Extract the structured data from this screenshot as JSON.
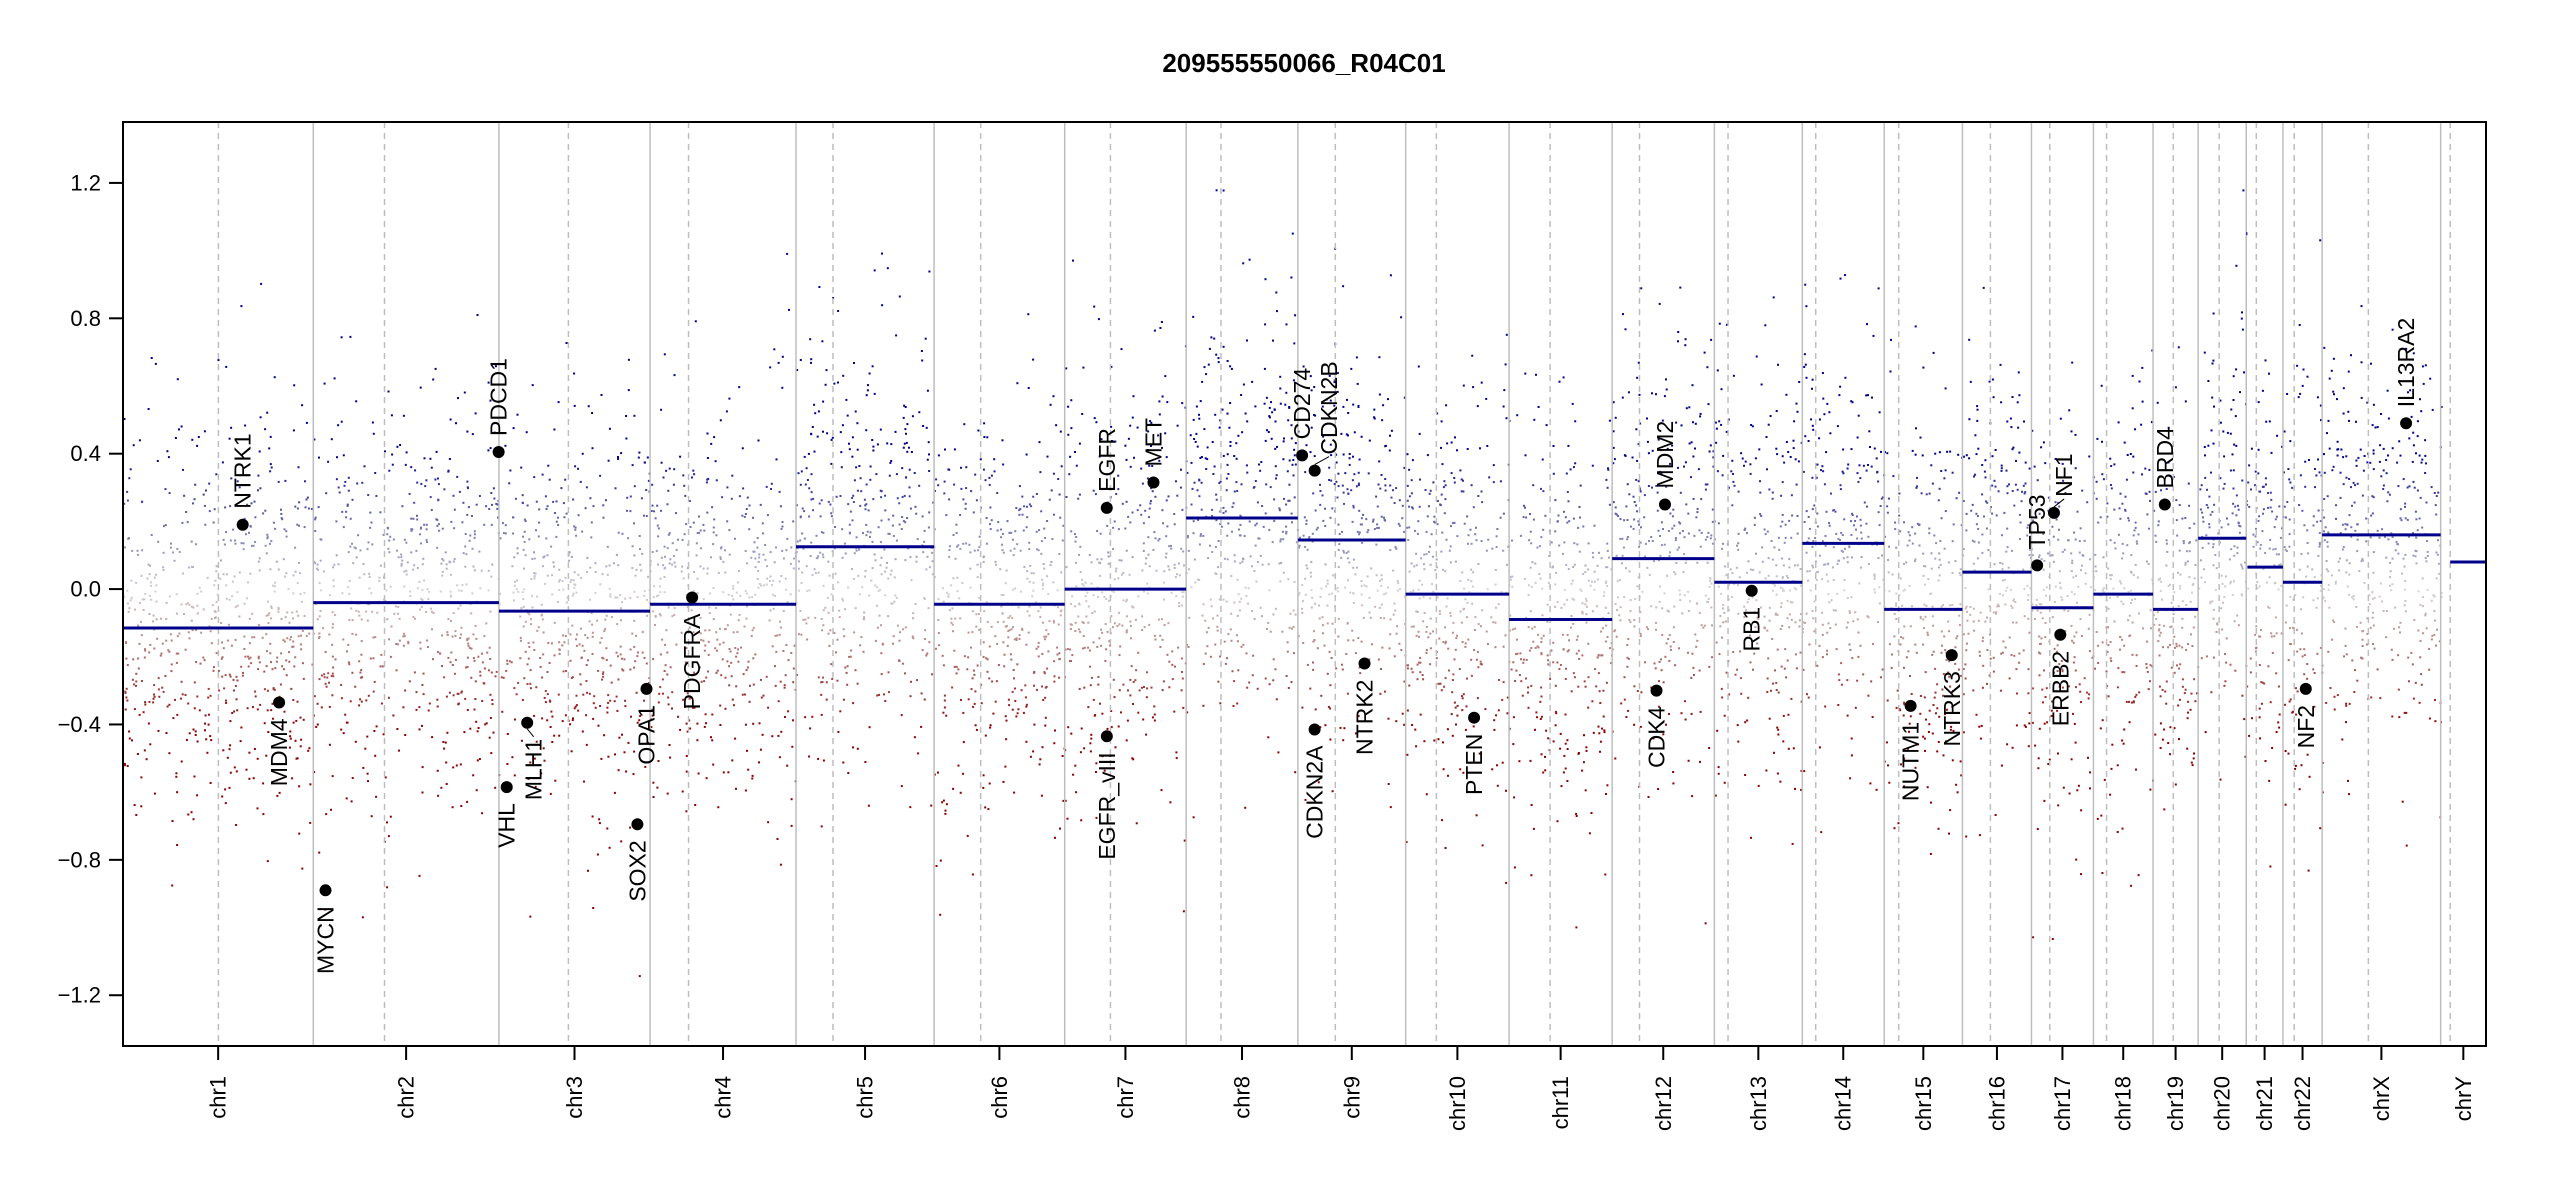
{
  "chart_data": {
    "type": "scatter",
    "title": "209555550066_R04C01",
    "xlabel": "",
    "ylabel": "",
    "ylim": [
      -1.35,
      1.38
    ],
    "y_ticks": [
      -1.2,
      -0.8,
      -0.4,
      0.0,
      0.4,
      0.8,
      1.2
    ],
    "y_tick_labels": [
      "−1.2",
      "−0.8",
      "−0.4",
      "0.0",
      "0.4",
      "0.8",
      "1.2"
    ],
    "x_unit": "Mb",
    "grid": false,
    "colors": {
      "gain": "#00008b",
      "neutral": "#d3d3d3",
      "loss": "#8b0000",
      "segment": "#00008b",
      "chrom_line": "#bebebe",
      "gene_point": "#000000"
    },
    "chromosomes": [
      {
        "name": "chr1",
        "length": 249.3,
        "centromere": 125.0,
        "segments": [
          {
            "start": 0,
            "end": 249.3,
            "mean": -0.115
          }
        ]
      },
      {
        "name": "chr2",
        "length": 243.2,
        "centromere": 93.3,
        "segments": [
          {
            "start": 0,
            "end": 243.2,
            "mean": -0.04
          }
        ]
      },
      {
        "name": "chr3",
        "length": 198.0,
        "centromere": 91.0,
        "segments": [
          {
            "start": 0,
            "end": 198.0,
            "mean": -0.065
          }
        ]
      },
      {
        "name": "chr4",
        "length": 191.2,
        "centromere": 50.4,
        "segments": [
          {
            "start": 0,
            "end": 191.2,
            "mean": -0.045
          }
        ]
      },
      {
        "name": "chr5",
        "length": 180.9,
        "centromere": 48.4,
        "segments": [
          {
            "start": 0,
            "end": 180.9,
            "mean": 0.125
          }
        ]
      },
      {
        "name": "chr6",
        "length": 171.1,
        "centromere": 61.0,
        "segments": [
          {
            "start": 0,
            "end": 171.1,
            "mean": -0.045
          }
        ]
      },
      {
        "name": "chr7",
        "length": 159.1,
        "centromere": 59.9,
        "segments": [
          {
            "start": 0,
            "end": 159.1,
            "mean": 0.0
          }
        ]
      },
      {
        "name": "chr8",
        "length": 146.4,
        "centromere": 45.6,
        "segments": [
          {
            "start": 0,
            "end": 146.4,
            "mean": 0.21
          }
        ]
      },
      {
        "name": "chr9",
        "length": 141.2,
        "centromere": 49.0,
        "segments": [
          {
            "start": 0,
            "end": 141.2,
            "mean": 0.145
          }
        ]
      },
      {
        "name": "chr10",
        "length": 135.5,
        "centromere": 40.2,
        "segments": [
          {
            "start": 0,
            "end": 135.5,
            "mean": -0.015
          }
        ]
      },
      {
        "name": "chr11",
        "length": 135.0,
        "centromere": 53.7,
        "segments": [
          {
            "start": 0,
            "end": 135.0,
            "mean": -0.09
          }
        ]
      },
      {
        "name": "chr12",
        "length": 133.9,
        "centromere": 35.8,
        "segments": [
          {
            "start": 0,
            "end": 133.9,
            "mean": 0.09
          }
        ]
      },
      {
        "name": "chr13",
        "length": 115.2,
        "centromere": 17.9,
        "segments": [
          {
            "start": 0,
            "end": 115.2,
            "mean": 0.02
          }
        ]
      },
      {
        "name": "chr14",
        "length": 107.3,
        "centromere": 17.6,
        "segments": [
          {
            "start": 0,
            "end": 107.3,
            "mean": 0.135
          }
        ]
      },
      {
        "name": "chr15",
        "length": 102.5,
        "centromere": 19.0,
        "segments": [
          {
            "start": 0,
            "end": 102.5,
            "mean": -0.06
          }
        ]
      },
      {
        "name": "chr16",
        "length": 90.4,
        "centromere": 36.6,
        "segments": [
          {
            "start": 0,
            "end": 90.4,
            "mean": 0.05
          }
        ]
      },
      {
        "name": "chr17",
        "length": 81.2,
        "centromere": 24.0,
        "segments": [
          {
            "start": 0,
            "end": 81.2,
            "mean": -0.055
          }
        ]
      },
      {
        "name": "chr18",
        "length": 78.1,
        "centromere": 17.2,
        "segments": [
          {
            "start": 0,
            "end": 78.1,
            "mean": -0.015
          }
        ]
      },
      {
        "name": "chr19",
        "length": 59.1,
        "centromere": 26.5,
        "segments": [
          {
            "start": 0,
            "end": 59.1,
            "mean": -0.06
          }
        ]
      },
      {
        "name": "chr20",
        "length": 63.0,
        "centromere": 27.5,
        "segments": [
          {
            "start": 0,
            "end": 63.0,
            "mean": 0.15
          }
        ]
      },
      {
        "name": "chr21",
        "length": 48.1,
        "centromere": 13.2,
        "segments": [
          {
            "start": 0,
            "end": 1.5,
            "mean": 1.05
          },
          {
            "start": 1.5,
            "end": 48.1,
            "mean": 0.065
          }
        ]
      },
      {
        "name": "chr22",
        "length": 51.3,
        "centromere": 14.7,
        "segments": [
          {
            "start": 0,
            "end": 51.3,
            "mean": 0.02
          }
        ]
      },
      {
        "name": "chrX",
        "length": 155.3,
        "centromere": 60.6,
        "segments": [
          {
            "start": 0,
            "end": 155.3,
            "mean": 0.16
          }
        ]
      },
      {
        "name": "chrY",
        "length": 59.4,
        "centromere": 12.5,
        "segments": [
          {
            "start": 12.5,
            "end": 59.4,
            "mean": 0.08
          }
        ]
      }
    ],
    "genes": [
      {
        "name": "NTRK1",
        "chr": "chr1",
        "pos": 156.8,
        "value": 0.19
      },
      {
        "name": "MDM4",
        "chr": "chr1",
        "pos": 204.5,
        "value": -0.335
      },
      {
        "name": "MYCN",
        "chr": "chr2",
        "pos": 16.0,
        "value": -0.89
      },
      {
        "name": "PDCD1",
        "chr": "chr2",
        "pos": 242.8,
        "value": 0.405
      },
      {
        "name": "VHL",
        "chr": "chr3",
        "pos": 10.2,
        "value": -0.585
      },
      {
        "name": "MLH1",
        "chr": "chr3",
        "pos": 37.0,
        "value": -0.395
      },
      {
        "name": "SOX2",
        "chr": "chr3",
        "pos": 181.4,
        "value": -0.695
      },
      {
        "name": "OPA1",
        "chr": "chr3",
        "pos": 193.3,
        "value": -0.295
      },
      {
        "name": "PDGFRA",
        "chr": "chr4",
        "pos": 55.1,
        "value": -0.025
      },
      {
        "name": "EGFR",
        "chr": "chr7",
        "pos": 55.1,
        "value": 0.24
      },
      {
        "name": "EGFR_vIII",
        "chr": "chr7",
        "pos": 55.2,
        "value": -0.435
      },
      {
        "name": "MET",
        "chr": "chr7",
        "pos": 116.3,
        "value": 0.315
      },
      {
        "name": "CD274",
        "chr": "chr9",
        "pos": 5.5,
        "value": 0.395
      },
      {
        "name": "CDKN2B",
        "chr": "chr9",
        "pos": 22.0,
        "value": 0.35
      },
      {
        "name": "CDKN2A",
        "chr": "chr9",
        "pos": 21.9,
        "value": -0.415
      },
      {
        "name": "NTRK2",
        "chr": "chr9",
        "pos": 87.3,
        "value": -0.22
      },
      {
        "name": "PTEN",
        "chr": "chr10",
        "pos": 89.6,
        "value": -0.38
      },
      {
        "name": "CDK4",
        "chr": "chr12",
        "pos": 58.1,
        "value": -0.3
      },
      {
        "name": "MDM2",
        "chr": "chr12",
        "pos": 69.2,
        "value": 0.25
      },
      {
        "name": "RB1",
        "chr": "chr13",
        "pos": 48.9,
        "value": -0.005
      },
      {
        "name": "NUTM1",
        "chr": "chr15",
        "pos": 34.6,
        "value": -0.345
      },
      {
        "name": "NTRK3",
        "chr": "chr15",
        "pos": 88.5,
        "value": -0.195
      },
      {
        "name": "TP53",
        "chr": "chr17",
        "pos": 7.5,
        "value": 0.07
      },
      {
        "name": "NF1",
        "chr": "chr17",
        "pos": 29.5,
        "value": 0.225
      },
      {
        "name": "ERBB2",
        "chr": "chr17",
        "pos": 37.8,
        "value": -0.135
      },
      {
        "name": "BRD4",
        "chr": "chr19",
        "pos": 15.4,
        "value": 0.25
      },
      {
        "name": "NF2",
        "chr": "chr22",
        "pos": 29.9,
        "value": -0.295
      },
      {
        "name": "IL13RA2",
        "chr": "chrX",
        "pos": 110.0,
        "value": 0.49
      }
    ]
  }
}
